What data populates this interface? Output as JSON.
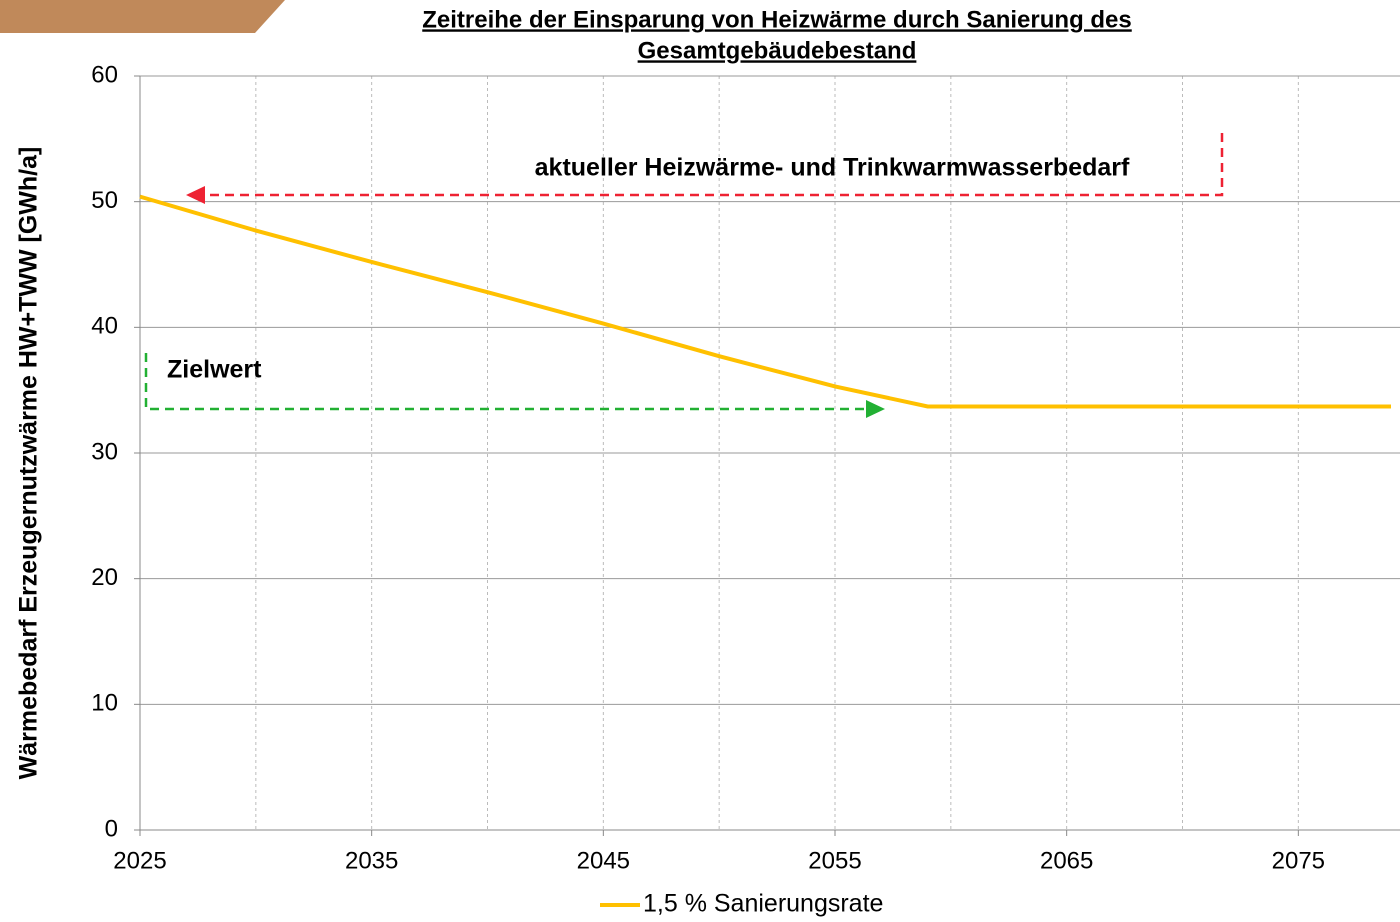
{
  "chart_data": {
    "type": "line",
    "title": [
      "Zeitreihe der Einsparung von Heizwärme durch Sanierung des",
      "Gesamtgebäudebestand"
    ],
    "y_label": "Wärmebedarf Erzeugernutzwärme HW+TWW [GWh/a]",
    "x": [
      2025,
      2030,
      2035,
      2040,
      2045,
      2050,
      2055,
      2059,
      2079
    ],
    "series": [
      {
        "name": "1,5 % Sanierungsrate",
        "color": "#ffc000",
        "values": [
          50.4,
          47.7,
          45.2,
          42.8,
          40.3,
          37.7,
          35.3,
          33.7,
          33.7
        ]
      }
    ],
    "xlim": [
      2025,
      2079
    ],
    "xticks": [
      2025,
      2035,
      2045,
      2055,
      2065,
      2075
    ],
    "xgrid": [
      2030,
      2035,
      2040,
      2045,
      2050,
      2055,
      2060,
      2065,
      2070,
      2075
    ],
    "ylim": [
      0,
      60
    ],
    "yticks": [
      0,
      10,
      20,
      30,
      40,
      50,
      60
    ],
    "grid": true,
    "annotations": [
      "aktueller Heizwärme- und Trinkwarmwasserbedarf",
      "Zielwert"
    ],
    "legend": "bottom"
  }
}
